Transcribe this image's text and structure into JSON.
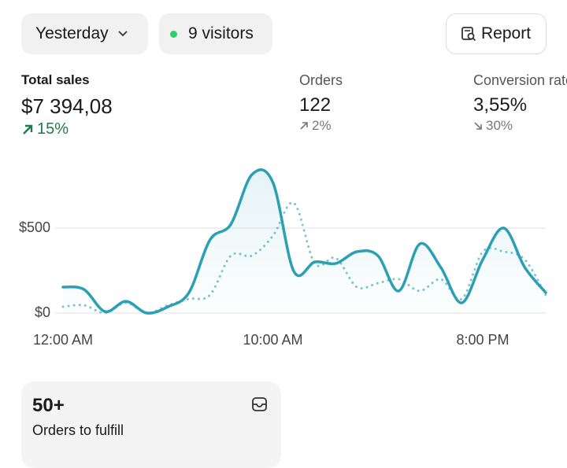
{
  "header": {
    "period": "Yesterday",
    "visitors": "9 visitors",
    "report": "Report"
  },
  "metrics": [
    {
      "label": "Total sales",
      "value": "$7 394,08",
      "change": "15%"
    },
    {
      "label": "Orders",
      "value": "122",
      "change": "2%"
    },
    {
      "label": "Conversion rate",
      "value": "3,55%",
      "change": "30%"
    }
  ],
  "chart_data": {
    "type": "line",
    "categories": [
      "12:00 AM",
      null,
      null,
      null,
      null,
      null,
      null,
      null,
      null,
      null,
      "10:00 AM",
      null,
      null,
      null,
      null,
      null,
      null,
      null,
      null,
      null,
      "8:00 PM",
      null,
      null,
      null
    ],
    "series": [
      {
        "color": "#2b9fb3",
        "style": "solid",
        "values": [
          153,
          139,
          9,
          69,
          0,
          37,
          120,
          430,
          523,
          815,
          769,
          245,
          301,
          292,
          361,
          338,
          130,
          407,
          269,
          60,
          315,
          500,
          269,
          120
        ]
      },
      {
        "color": "#7cc6cf",
        "style": "dotted",
        "values": [
          37,
          46,
          0,
          60,
          0,
          46,
          83,
          106,
          338,
          338,
          454,
          648,
          292,
          324,
          153,
          176,
          199,
          130,
          199,
          83,
          361,
          361,
          315,
          106
        ]
      }
    ],
    "ylim": [
      0,
      850
    ],
    "yticks": [
      {
        "value": 0,
        "label": "$0"
      },
      {
        "value": 500,
        "label": "$500"
      }
    ],
    "grid": true
  },
  "fulfill": {
    "count": "50+",
    "label": "Orders to fulfill"
  }
}
